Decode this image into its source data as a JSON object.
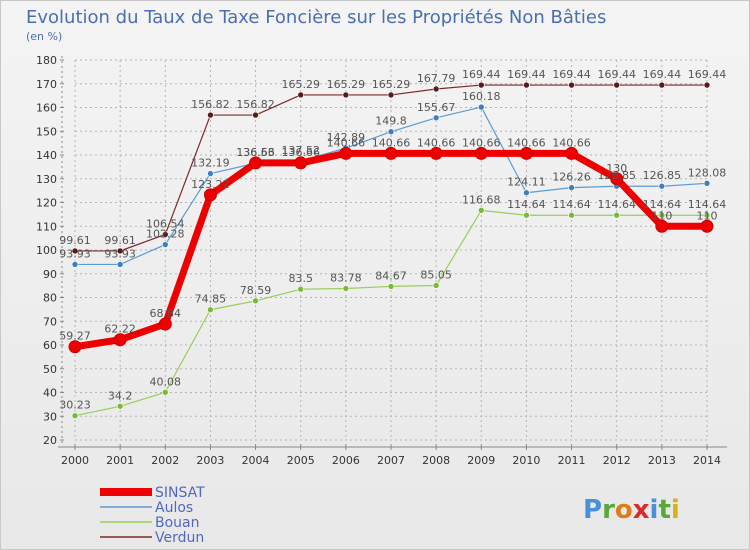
{
  "chart_data": {
    "type": "line",
    "title": "Evolution du Taux de Taxe Foncière sur les Propriétés Non Bâties",
    "subtitle": "(en %)",
    "xlabel": "",
    "ylabel": "",
    "ylim": [
      20,
      180
    ],
    "yticks": [
      20,
      30,
      40,
      50,
      60,
      70,
      80,
      90,
      100,
      110,
      120,
      130,
      140,
      150,
      160,
      170,
      180
    ],
    "categories": [
      "2000",
      "2001",
      "2002",
      "2003",
      "2004",
      "2005",
      "2006",
      "2007",
      "2008",
      "2009",
      "2010",
      "2011",
      "2012",
      "2013",
      "2014"
    ],
    "grid": true,
    "legend_position": "bottom-left",
    "series": [
      {
        "name": "Verdun",
        "color": "#7a2a2a",
        "dot": "#5a1a1a",
        "width": 1.2,
        "emphasis": false,
        "values": [
          99.61,
          99.61,
          106.54,
          156.82,
          156.82,
          165.29,
          165.29,
          165.29,
          167.79,
          169.44,
          169.44,
          169.44,
          169.44,
          169.44,
          169.44
        ],
        "labels": [
          "99.61",
          "99.61",
          "106.54",
          "156.82",
          "156.82",
          "165.29",
          "165.29",
          "165.29",
          "167.79",
          "169.44",
          "169.44",
          "169.44",
          "169.44",
          "169.44",
          "169.44"
        ]
      },
      {
        "name": "Aulos",
        "color": "#5b9bd5",
        "dot": "#3f7fbf",
        "width": 1.2,
        "emphasis": false,
        "values": [
          93.93,
          93.93,
          102.28,
          132.19,
          136.53,
          137.52,
          142.89,
          149.8,
          155.67,
          160.18,
          124.11,
          126.26,
          126.85,
          126.85,
          128.08
        ],
        "labels": [
          "93.93",
          "93.93",
          "102.28",
          "132.19",
          "136.53",
          "137.52",
          "142.89",
          "149.8",
          "155.67",
          "160.18",
          "124.11",
          "126.26",
          "126.85",
          "126.85",
          "128.08"
        ]
      },
      {
        "name": "Bouan",
        "color": "#9acd5a",
        "dot": "#7ab83a",
        "width": 1.2,
        "emphasis": false,
        "values": [
          30.23,
          34.2,
          40.08,
          74.85,
          78.59,
          83.5,
          83.78,
          84.67,
          85.05,
          116.68,
          114.64,
          114.64,
          114.64,
          114.64,
          114.64
        ],
        "labels": [
          "30.23",
          "34.2",
          "40.08",
          "74.85",
          "78.59",
          "83.5",
          "83.78",
          "84.67",
          "85.05",
          "116.68",
          "114.64",
          "114.64",
          "114.64",
          "114.64",
          "114.64"
        ]
      },
      {
        "name": "SINSAT",
        "color": "#ee0000",
        "dot": "#ee0000",
        "width": 7,
        "emphasis": true,
        "values": [
          59.27,
          62.22,
          68.84,
          123.22,
          136.66,
          136.66,
          140.66,
          140.66,
          140.66,
          140.66,
          140.66,
          140.66,
          130,
          110,
          110
        ],
        "labels": [
          "59.27",
          "62.22",
          "68.84",
          "123.22",
          "136.66",
          "136.66",
          "140.66",
          "140.66",
          "140.66",
          "140.66",
          "140.66",
          "140.66",
          "130",
          "110",
          "110"
        ]
      }
    ]
  },
  "legend_order": [
    "SINSAT",
    "Aulos",
    "Bouan",
    "Verdun"
  ],
  "logo": {
    "letters": [
      "P",
      "r",
      "o",
      "x",
      "i",
      "t",
      "i"
    ],
    "colors": [
      "#4a90d9",
      "#5aa83a",
      "#e07b1a",
      "#d92b2b",
      "#4a90d9",
      "#5aa83a",
      "#d9b01a"
    ]
  }
}
